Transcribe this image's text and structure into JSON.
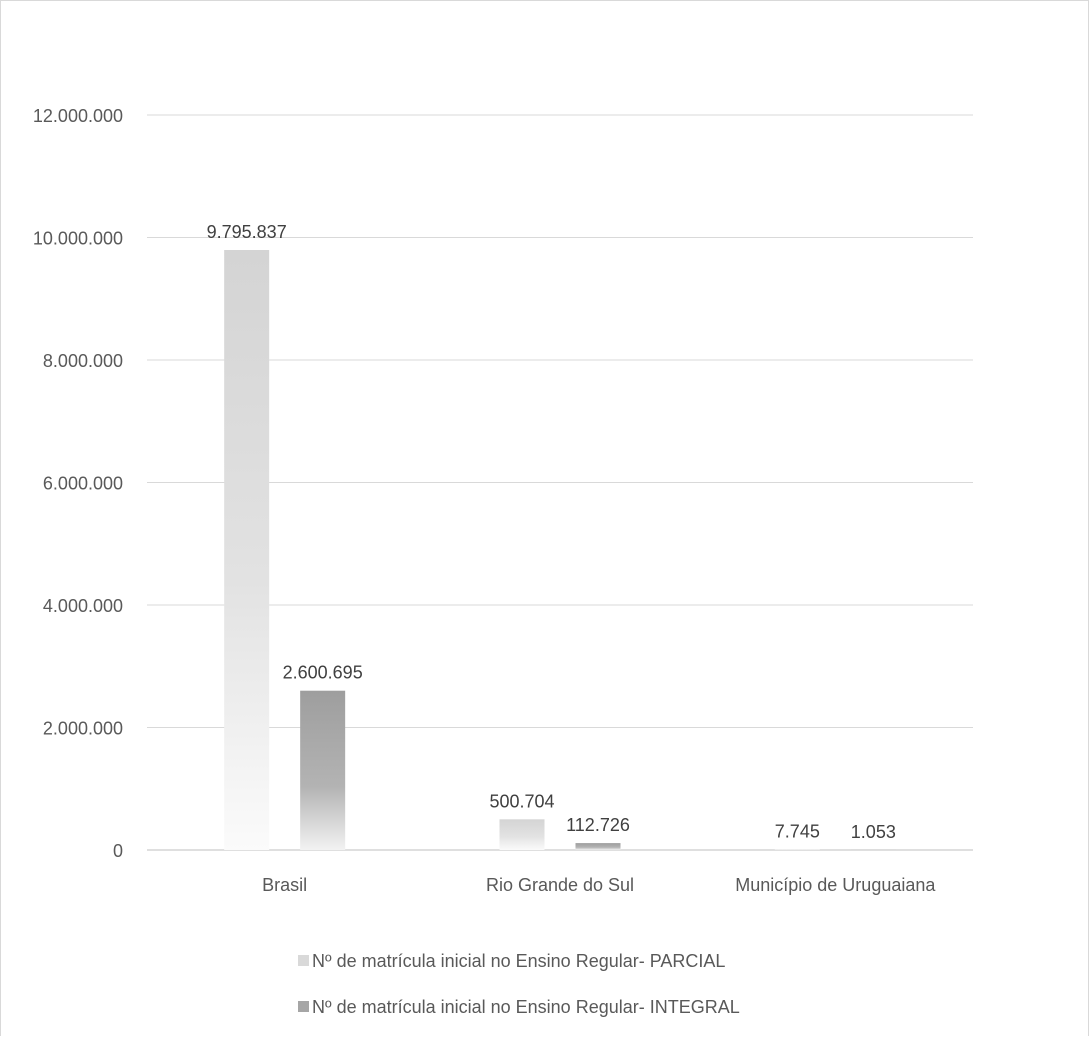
{
  "chart_data": {
    "type": "bar",
    "title": "",
    "xlabel": "",
    "ylabel": "",
    "categories": [
      "Brasil",
      "Rio Grande do Sul",
      "Município de Uruguaiana"
    ],
    "ylim": [
      0,
      12000000
    ],
    "yticks": [
      0,
      2000000,
      4000000,
      6000000,
      8000000,
      10000000,
      12000000
    ],
    "ytick_labels": [
      "0",
      "2.000.000",
      "4.000.000",
      "6.000.000",
      "8.000.000",
      "10.000.000",
      "12.000.000"
    ],
    "grid": true,
    "legend_position": "bottom",
    "series": [
      {
        "name": "Nº de matrícula inicial no Ensino Regular- PARCIAL",
        "values": [
          9795837,
          500704,
          7745
        ],
        "labels": [
          "9.795.837",
          "500.704",
          "7.745"
        ],
        "color": "#d9d9d9"
      },
      {
        "name": "Nº de matrícula inicial no Ensino Regular- INTEGRAL",
        "values": [
          2600695,
          112726,
          1053
        ],
        "labels": [
          "2.600.695",
          "112.726",
          "1.053"
        ],
        "color": "#a6a6a6"
      }
    ]
  }
}
